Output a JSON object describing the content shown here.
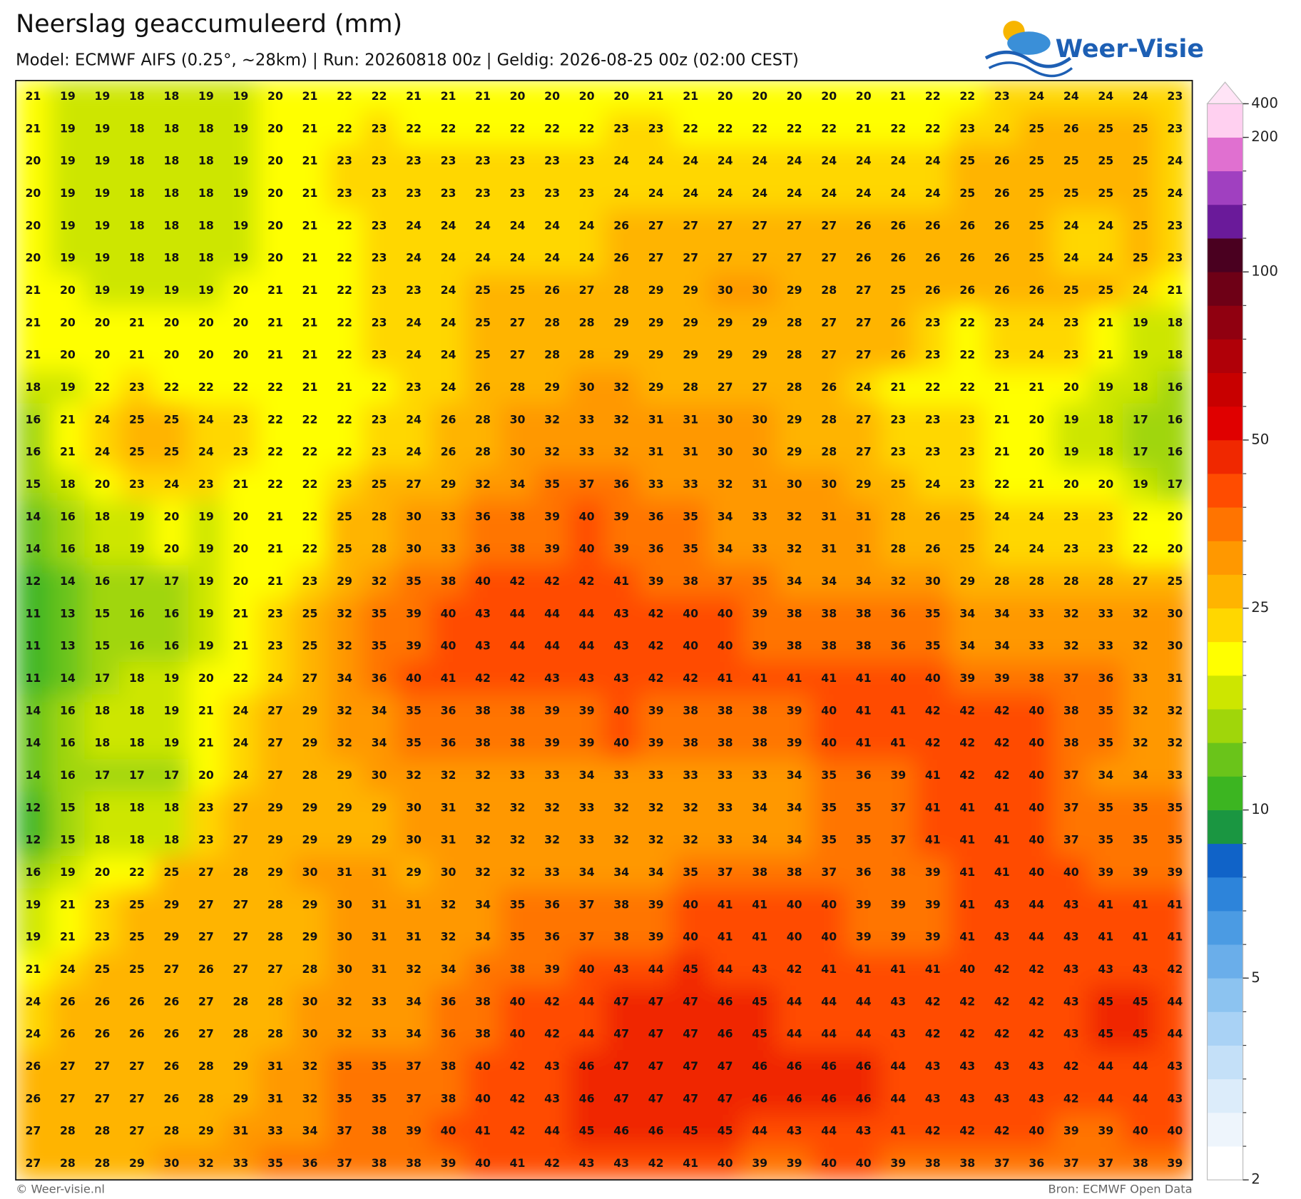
{
  "map": {
    "title": "Neerslag geaccumuleerd (mm)",
    "subtitle": "Model: ECMWF AIFS (0.25°, ~28km)  |  Run: 20260818 00z  |  Geldig: 2026-08-25 00z (02:00 CEST)",
    "values": [
      [
        21,
        19,
        19,
        18,
        18,
        19,
        19,
        20,
        21,
        22,
        22,
        21,
        21,
        21,
        20,
        20,
        20,
        20,
        21,
        21,
        20,
        20,
        20,
        20,
        20,
        21,
        22,
        22,
        23,
        24,
        24,
        24,
        24,
        23
      ],
      [
        21,
        19,
        19,
        18,
        18,
        18,
        19,
        20,
        21,
        22,
        23,
        22,
        22,
        22,
        22,
        22,
        22,
        23,
        23,
        22,
        22,
        22,
        22,
        22,
        21,
        22,
        22,
        23,
        24,
        25,
        26,
        25,
        25,
        23
      ],
      [
        20,
        19,
        19,
        18,
        18,
        18,
        19,
        20,
        21,
        23,
        23,
        23,
        23,
        23,
        23,
        23,
        23,
        24,
        24,
        24,
        24,
        24,
        24,
        24,
        24,
        24,
        24,
        25,
        26,
        25,
        25,
        25,
        25,
        24
      ],
      [
        20,
        19,
        19,
        18,
        18,
        18,
        19,
        20,
        21,
        23,
        23,
        23,
        23,
        23,
        23,
        23,
        23,
        24,
        24,
        24,
        24,
        24,
        24,
        24,
        24,
        24,
        24,
        25,
        26,
        25,
        25,
        25,
        25,
        24
      ],
      [
        20,
        19,
        19,
        18,
        18,
        18,
        19,
        20,
        21,
        22,
        23,
        24,
        24,
        24,
        24,
        24,
        24,
        26,
        27,
        27,
        27,
        27,
        27,
        27,
        26,
        26,
        26,
        26,
        26,
        25,
        24,
        24,
        25,
        23
      ],
      [
        20,
        19,
        19,
        18,
        18,
        18,
        19,
        20,
        21,
        22,
        23,
        24,
        24,
        24,
        24,
        24,
        24,
        26,
        27,
        27,
        27,
        27,
        27,
        27,
        26,
        26,
        26,
        26,
        26,
        25,
        24,
        24,
        25,
        23
      ],
      [
        21,
        20,
        19,
        19,
        19,
        19,
        20,
        21,
        21,
        22,
        23,
        23,
        24,
        25,
        25,
        26,
        27,
        28,
        29,
        29,
        30,
        30,
        29,
        28,
        27,
        25,
        26,
        26,
        26,
        26,
        25,
        25,
        24,
        21
      ],
      [
        21,
        20,
        20,
        21,
        20,
        20,
        20,
        21,
        21,
        22,
        23,
        24,
        24,
        25,
        27,
        28,
        28,
        29,
        29,
        29,
        29,
        29,
        28,
        27,
        27,
        26,
        23,
        22,
        23,
        24,
        23,
        21,
        19,
        18
      ],
      [
        21,
        20,
        20,
        21,
        20,
        20,
        20,
        21,
        21,
        22,
        23,
        24,
        24,
        25,
        27,
        28,
        28,
        29,
        29,
        29,
        29,
        29,
        28,
        27,
        27,
        26,
        23,
        22,
        23,
        24,
        23,
        21,
        19,
        18
      ],
      [
        18,
        19,
        22,
        23,
        22,
        22,
        22,
        22,
        21,
        21,
        22,
        23,
        24,
        26,
        28,
        29,
        30,
        32,
        29,
        28,
        27,
        27,
        28,
        26,
        24,
        21,
        22,
        22,
        21,
        21,
        20,
        19,
        18,
        16
      ],
      [
        16,
        21,
        24,
        25,
        25,
        24,
        23,
        22,
        22,
        22,
        23,
        24,
        26,
        28,
        30,
        32,
        33,
        32,
        31,
        31,
        30,
        30,
        29,
        28,
        27,
        23,
        23,
        23,
        21,
        20,
        19,
        18,
        17,
        16
      ],
      [
        16,
        21,
        24,
        25,
        25,
        24,
        23,
        22,
        22,
        22,
        23,
        24,
        26,
        28,
        30,
        32,
        33,
        32,
        31,
        31,
        30,
        30,
        29,
        28,
        27,
        23,
        23,
        23,
        21,
        20,
        19,
        18,
        17,
        16
      ],
      [
        15,
        18,
        20,
        23,
        24,
        23,
        21,
        22,
        22,
        23,
        25,
        27,
        29,
        32,
        34,
        35,
        37,
        36,
        33,
        33,
        32,
        31,
        30,
        30,
        29,
        25,
        24,
        23,
        22,
        21,
        20,
        20,
        19,
        17
      ],
      [
        14,
        16,
        18,
        19,
        20,
        19,
        20,
        21,
        22,
        25,
        28,
        30,
        33,
        36,
        38,
        39,
        40,
        39,
        36,
        35,
        34,
        33,
        32,
        31,
        31,
        28,
        26,
        25,
        24,
        24,
        23,
        23,
        22,
        20
      ],
      [
        14,
        16,
        18,
        19,
        20,
        19,
        20,
        21,
        22,
        25,
        28,
        30,
        33,
        36,
        38,
        39,
        40,
        39,
        36,
        35,
        34,
        33,
        32,
        31,
        31,
        28,
        26,
        25,
        24,
        24,
        23,
        23,
        22,
        20
      ],
      [
        12,
        14,
        16,
        17,
        17,
        19,
        20,
        21,
        23,
        29,
        32,
        35,
        38,
        40,
        42,
        42,
        42,
        41,
        39,
        38,
        37,
        35,
        34,
        34,
        34,
        32,
        30,
        29,
        28,
        28,
        28,
        28,
        27,
        25
      ],
      [
        11,
        13,
        15,
        16,
        16,
        19,
        21,
        23,
        25,
        32,
        35,
        39,
        40,
        43,
        44,
        44,
        44,
        43,
        42,
        40,
        40,
        39,
        38,
        38,
        38,
        36,
        35,
        34,
        34,
        33,
        32,
        33,
        32,
        30
      ],
      [
        11,
        13,
        15,
        16,
        16,
        19,
        21,
        23,
        25,
        32,
        35,
        39,
        40,
        43,
        44,
        44,
        44,
        43,
        42,
        40,
        40,
        39,
        38,
        38,
        38,
        36,
        35,
        34,
        34,
        33,
        32,
        33,
        32,
        30
      ],
      [
        11,
        14,
        17,
        18,
        19,
        20,
        22,
        24,
        27,
        34,
        36,
        40,
        41,
        42,
        42,
        43,
        43,
        43,
        42,
        42,
        41,
        41,
        41,
        41,
        41,
        40,
        40,
        39,
        39,
        38,
        37,
        36,
        33,
        31
      ],
      [
        14,
        16,
        18,
        18,
        19,
        21,
        24,
        27,
        29,
        32,
        34,
        35,
        36,
        38,
        38,
        39,
        39,
        40,
        39,
        38,
        38,
        38,
        39,
        40,
        41,
        41,
        42,
        42,
        42,
        40,
        38,
        35,
        32,
        32
      ],
      [
        14,
        16,
        18,
        18,
        19,
        21,
        24,
        27,
        29,
        32,
        34,
        35,
        36,
        38,
        38,
        39,
        39,
        40,
        39,
        38,
        38,
        38,
        39,
        40,
        41,
        41,
        42,
        42,
        42,
        40,
        38,
        35,
        32,
        32
      ],
      [
        14,
        16,
        17,
        17,
        17,
        20,
        24,
        27,
        28,
        29,
        30,
        32,
        32,
        32,
        33,
        33,
        34,
        33,
        33,
        33,
        33,
        33,
        34,
        35,
        36,
        39,
        41,
        42,
        42,
        40,
        37,
        34,
        34,
        33
      ],
      [
        12,
        15,
        18,
        18,
        18,
        23,
        27,
        29,
        29,
        29,
        29,
        30,
        31,
        32,
        32,
        32,
        33,
        32,
        32,
        32,
        33,
        34,
        34,
        35,
        35,
        37,
        41,
        41,
        41,
        40,
        37,
        35,
        35,
        35
      ],
      [
        12,
        15,
        18,
        18,
        18,
        23,
        27,
        29,
        29,
        29,
        29,
        30,
        31,
        32,
        32,
        32,
        33,
        32,
        32,
        32,
        33,
        34,
        34,
        35,
        35,
        37,
        41,
        41,
        41,
        40,
        37,
        35,
        35,
        35
      ],
      [
        16,
        19,
        20,
        22,
        25,
        27,
        28,
        29,
        30,
        31,
        31,
        29,
        30,
        32,
        32,
        33,
        34,
        34,
        34,
        35,
        37,
        38,
        38,
        37,
        36,
        38,
        39,
        41,
        41,
        40,
        40,
        39,
        39,
        39
      ],
      [
        19,
        21,
        23,
        25,
        29,
        27,
        27,
        28,
        29,
        30,
        31,
        31,
        32,
        34,
        35,
        36,
        37,
        38,
        39,
        40,
        41,
        41,
        40,
        40,
        39,
        39,
        39,
        41,
        43,
        44,
        43,
        41,
        41,
        41
      ],
      [
        19,
        21,
        23,
        25,
        29,
        27,
        27,
        28,
        29,
        30,
        31,
        31,
        32,
        34,
        35,
        36,
        37,
        38,
        39,
        40,
        41,
        41,
        40,
        40,
        39,
        39,
        39,
        41,
        43,
        44,
        43,
        41,
        41,
        41
      ],
      [
        21,
        24,
        25,
        25,
        27,
        26,
        27,
        27,
        28,
        30,
        31,
        32,
        34,
        36,
        38,
        39,
        40,
        43,
        44,
        45,
        44,
        43,
        42,
        41,
        41,
        41,
        41,
        40,
        42,
        42,
        43,
        43,
        43,
        42
      ],
      [
        24,
        26,
        26,
        26,
        26,
        27,
        28,
        28,
        30,
        32,
        33,
        34,
        36,
        38,
        40,
        42,
        44,
        47,
        47,
        47,
        46,
        45,
        44,
        44,
        44,
        43,
        42,
        42,
        42,
        42,
        43,
        45,
        45,
        44
      ],
      [
        24,
        26,
        26,
        26,
        26,
        27,
        28,
        28,
        30,
        32,
        33,
        34,
        36,
        38,
        40,
        42,
        44,
        47,
        47,
        47,
        46,
        45,
        44,
        44,
        44,
        43,
        42,
        42,
        42,
        42,
        43,
        45,
        45,
        44
      ],
      [
        26,
        27,
        27,
        27,
        26,
        28,
        29,
        31,
        32,
        35,
        35,
        37,
        38,
        40,
        42,
        43,
        46,
        47,
        47,
        47,
        47,
        46,
        46,
        46,
        46,
        44,
        43,
        43,
        43,
        43,
        42,
        44,
        44,
        43
      ],
      [
        26,
        27,
        27,
        27,
        26,
        28,
        29,
        31,
        32,
        35,
        35,
        37,
        38,
        40,
        42,
        43,
        46,
        47,
        47,
        47,
        47,
        46,
        46,
        46,
        46,
        44,
        43,
        43,
        43,
        43,
        42,
        44,
        44,
        43
      ],
      [
        27,
        28,
        28,
        27,
        28,
        29,
        31,
        33,
        34,
        37,
        38,
        39,
        40,
        41,
        42,
        44,
        45,
        46,
        46,
        45,
        45,
        44,
        43,
        44,
        43,
        41,
        42,
        42,
        42,
        40,
        39,
        39,
        40,
        40
      ],
      [
        27,
        28,
        28,
        29,
        30,
        32,
        33,
        35,
        36,
        37,
        38,
        38,
        39,
        40,
        41,
        42,
        43,
        43,
        42,
        41,
        40,
        39,
        39,
        40,
        40,
        39,
        38,
        38,
        37,
        36,
        37,
        37,
        38,
        39
      ]
    ],
    "colorbar": {
      "levels": [
        2,
        2.5,
        3,
        3.5,
        4,
        4.5,
        5,
        6,
        7,
        8,
        9,
        10,
        12.5,
        15,
        17.5,
        20,
        22.5,
        25,
        30,
        35,
        40,
        45,
        50,
        60,
        70,
        80,
        90,
        100,
        125,
        150,
        175,
        200,
        400
      ],
      "colors": [
        "#ffffff",
        "#eef5fc",
        "#dcecfa",
        "#c4e0f8",
        "#a9d2f5",
        "#8cc3f0",
        "#6aaeea",
        "#4b9be3",
        "#2d84da",
        "#1063c8",
        "#1a9641",
        "#3cb521",
        "#6ac41a",
        "#a0d60a",
        "#cde600",
        "#ffff00",
        "#ffd700",
        "#ffb400",
        "#ff9800",
        "#ff7400",
        "#ff4c00",
        "#f02800",
        "#e00000",
        "#c80000",
        "#b00008",
        "#900010",
        "#6e0016",
        "#4a0020",
        "#6a1a9a",
        "#a040c0",
        "#e070d0",
        "#ffd0f0"
      ],
      "extend_color": "#ffe4f6",
      "ticks": [
        2,
        5,
        10,
        25,
        50,
        100,
        200,
        400
      ]
    }
  },
  "logo": "Weer-Visie",
  "footer": {
    "left": "© Weer-visie.nl",
    "right": "Bron: ECMWF Open Data"
  }
}
